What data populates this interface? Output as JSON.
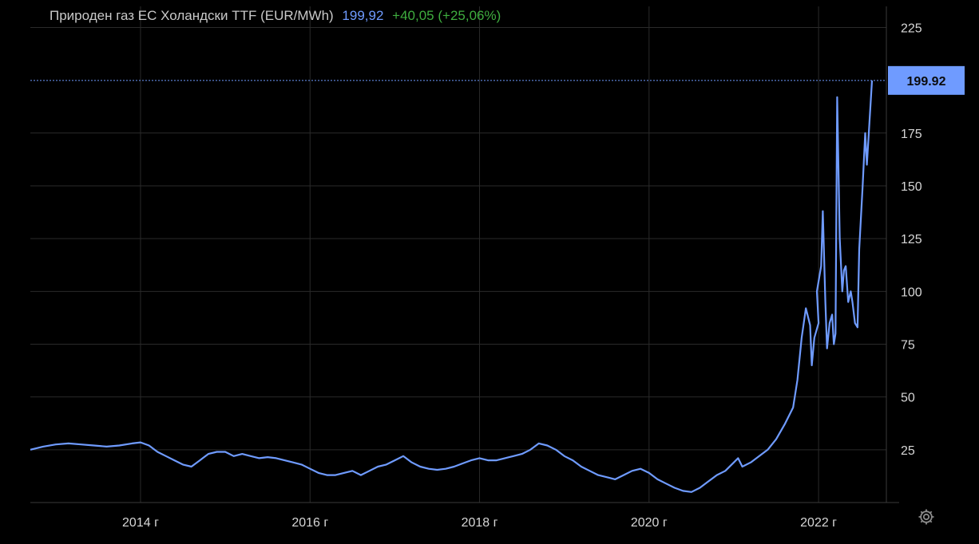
{
  "header": {
    "title": "Природен газ ЕС Холандски TTF (EUR/MWh)",
    "last_value": "199,92",
    "change": "+40,05 (+25,06%)"
  },
  "price_label": "199.92",
  "icons": {
    "settings": "gear-icon"
  },
  "colors": {
    "line": "#6f9bff",
    "change": "#3fae3f",
    "grid": "#2a2a2a",
    "background": "#000000"
  },
  "chart_data": {
    "type": "line",
    "title": "Природен газ ЕС Холандски TTF (EUR/MWh)",
    "xlabel": "",
    "ylabel": "",
    "x_ticks": [
      "2014 г",
      "2016 г",
      "2018 г",
      "2020 г",
      "2022 г"
    ],
    "y_ticks": [
      25,
      50,
      75,
      100,
      125,
      150,
      175,
      225
    ],
    "ylim": [
      0,
      235
    ],
    "xlim": [
      2012.7,
      2022.8
    ],
    "grid": true,
    "last_value": 199.92,
    "series": [
      {
        "values": [
          [
            2012.7,
            25
          ],
          [
            2012.85,
            26.5
          ],
          [
            2013.0,
            27.5
          ],
          [
            2013.15,
            28
          ],
          [
            2013.3,
            27.5
          ],
          [
            2013.45,
            27
          ],
          [
            2013.6,
            26.5
          ],
          [
            2013.75,
            27
          ],
          [
            2013.9,
            28
          ],
          [
            2014.0,
            28.5
          ],
          [
            2014.1,
            27
          ],
          [
            2014.2,
            24
          ],
          [
            2014.3,
            22
          ],
          [
            2014.4,
            20
          ],
          [
            2014.5,
            18
          ],
          [
            2014.6,
            17
          ],
          [
            2014.7,
            20
          ],
          [
            2014.8,
            23
          ],
          [
            2014.9,
            24
          ],
          [
            2015.0,
            24
          ],
          [
            2015.1,
            22
          ],
          [
            2015.2,
            23
          ],
          [
            2015.3,
            22
          ],
          [
            2015.4,
            21
          ],
          [
            2015.5,
            21.5
          ],
          [
            2015.6,
            21
          ],
          [
            2015.7,
            20
          ],
          [
            2015.8,
            19
          ],
          [
            2015.9,
            18
          ],
          [
            2016.0,
            16
          ],
          [
            2016.1,
            14
          ],
          [
            2016.2,
            13
          ],
          [
            2016.3,
            13
          ],
          [
            2016.4,
            14
          ],
          [
            2016.5,
            15
          ],
          [
            2016.6,
            13
          ],
          [
            2016.7,
            15
          ],
          [
            2016.8,
            17
          ],
          [
            2016.9,
            18
          ],
          [
            2017.0,
            20
          ],
          [
            2017.1,
            22
          ],
          [
            2017.2,
            19
          ],
          [
            2017.3,
            17
          ],
          [
            2017.4,
            16
          ],
          [
            2017.5,
            15.5
          ],
          [
            2017.6,
            16
          ],
          [
            2017.7,
            17
          ],
          [
            2017.8,
            18.5
          ],
          [
            2017.9,
            20
          ],
          [
            2018.0,
            21
          ],
          [
            2018.1,
            20
          ],
          [
            2018.2,
            20
          ],
          [
            2018.3,
            21
          ],
          [
            2018.4,
            22
          ],
          [
            2018.5,
            23
          ],
          [
            2018.6,
            25
          ],
          [
            2018.7,
            28
          ],
          [
            2018.8,
            27
          ],
          [
            2018.9,
            25
          ],
          [
            2019.0,
            22
          ],
          [
            2019.1,
            20
          ],
          [
            2019.2,
            17
          ],
          [
            2019.3,
            15
          ],
          [
            2019.4,
            13
          ],
          [
            2019.5,
            12
          ],
          [
            2019.6,
            11
          ],
          [
            2019.7,
            13
          ],
          [
            2019.8,
            15
          ],
          [
            2019.9,
            16
          ],
          [
            2020.0,
            14
          ],
          [
            2020.1,
            11
          ],
          [
            2020.2,
            9
          ],
          [
            2020.3,
            7
          ],
          [
            2020.4,
            5.5
          ],
          [
            2020.5,
            5
          ],
          [
            2020.6,
            7
          ],
          [
            2020.7,
            10
          ],
          [
            2020.8,
            13
          ],
          [
            2020.9,
            15
          ],
          [
            2021.0,
            19
          ],
          [
            2021.05,
            21
          ],
          [
            2021.1,
            17
          ],
          [
            2021.2,
            19
          ],
          [
            2021.3,
            22
          ],
          [
            2021.4,
            25
          ],
          [
            2021.5,
            30
          ],
          [
            2021.6,
            37
          ],
          [
            2021.7,
            45
          ],
          [
            2021.75,
            58
          ],
          [
            2021.8,
            78
          ],
          [
            2021.85,
            92
          ],
          [
            2021.9,
            84
          ],
          [
            2021.92,
            65
          ],
          [
            2021.95,
            78
          ],
          [
            2022.0,
            85
          ],
          [
            2021.98,
            100
          ],
          [
            2022.03,
            112
          ],
          [
            2022.05,
            138
          ],
          [
            2022.08,
            95
          ],
          [
            2022.1,
            73
          ],
          [
            2022.13,
            85
          ],
          [
            2022.16,
            89
          ],
          [
            2022.18,
            75
          ],
          [
            2022.2,
            80
          ],
          [
            2022.22,
            192
          ],
          [
            2022.25,
            125
          ],
          [
            2022.28,
            100
          ],
          [
            2022.3,
            110
          ],
          [
            2022.32,
            112
          ],
          [
            2022.35,
            95
          ],
          [
            2022.38,
            100
          ],
          [
            2022.4,
            95
          ],
          [
            2022.43,
            85
          ],
          [
            2022.46,
            83
          ],
          [
            2022.48,
            120
          ],
          [
            2022.52,
            150
          ],
          [
            2022.55,
            175
          ],
          [
            2022.57,
            160
          ],
          [
            2022.6,
            180
          ],
          [
            2022.63,
            199.92
          ]
        ]
      }
    ]
  }
}
